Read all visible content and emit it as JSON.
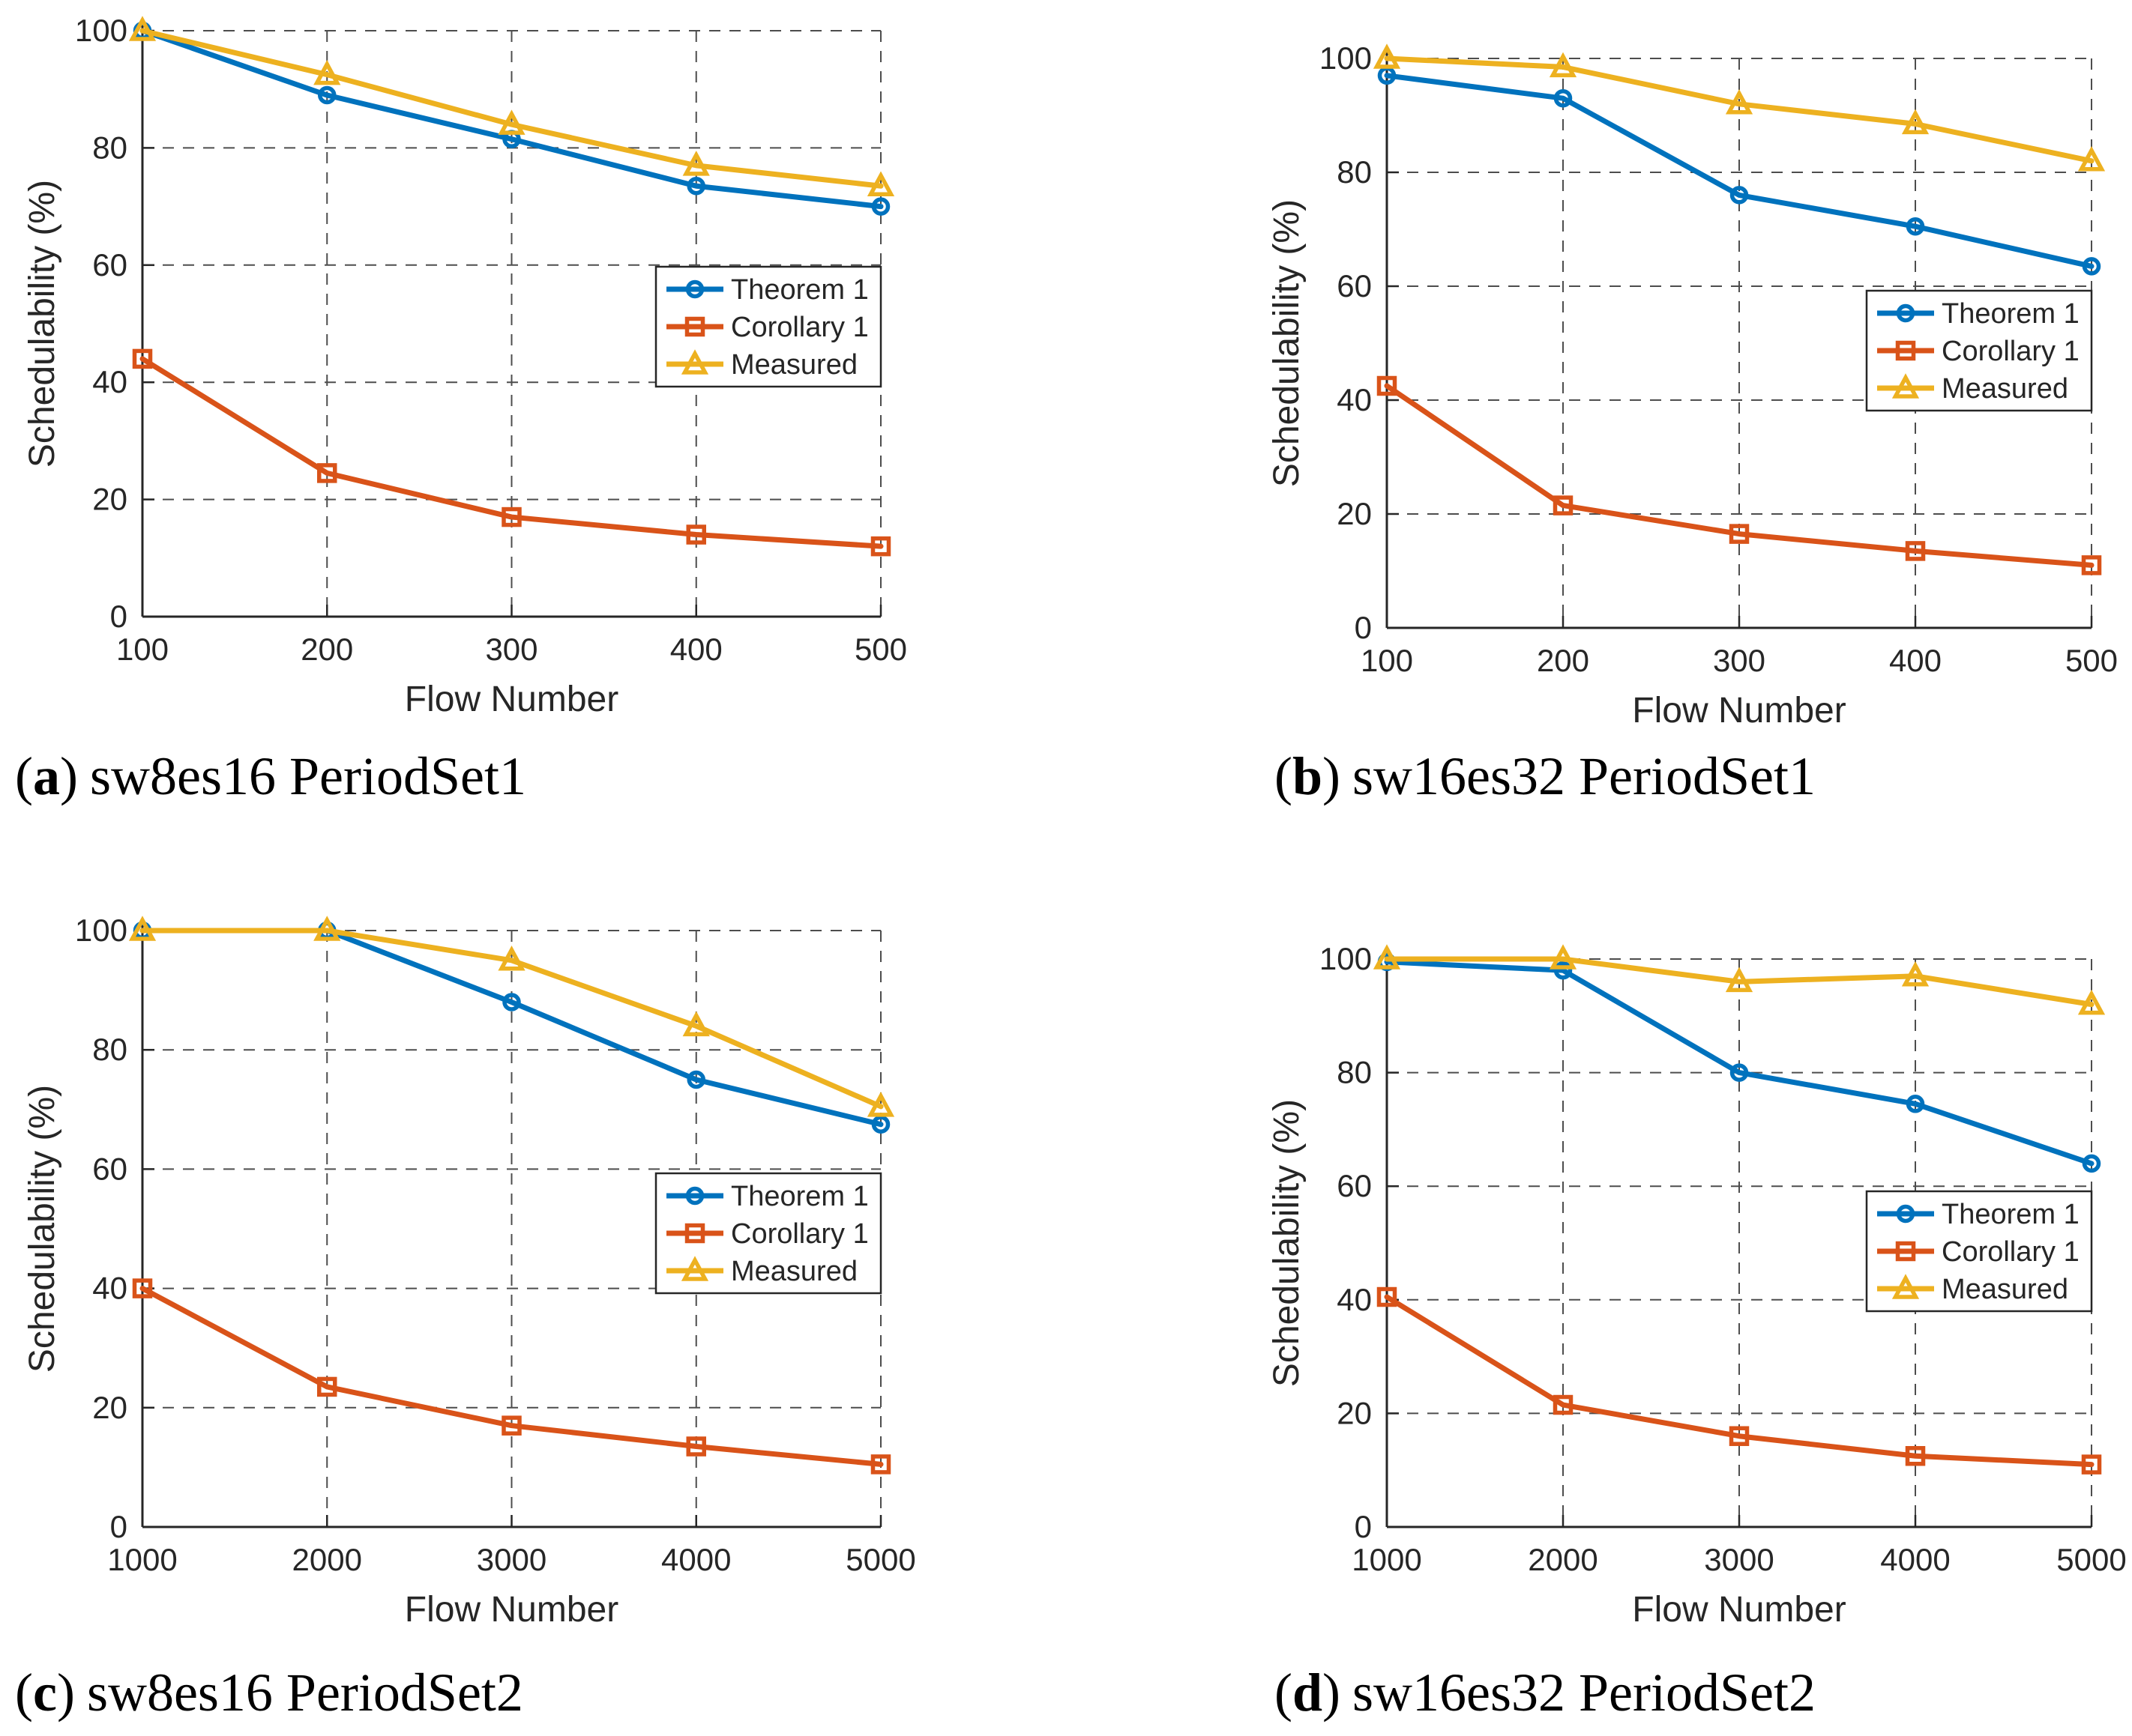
{
  "page": {
    "background": "#ffffff"
  },
  "colors": {
    "theorem1": "#0072BD",
    "corollary1": "#D95319",
    "measured": "#EDB120",
    "grid": "#4d4d4d",
    "axis": "#262626",
    "text": "#262626",
    "legend_background": "#ffffff"
  },
  "captions": {
    "paren_open": "(",
    "paren_close": ")"
  },
  "legend": {
    "position": "inside-right",
    "items": [
      "Theorem 1",
      "Corollary 1",
      "Measured"
    ]
  },
  "chart_data": [
    {
      "id": "a",
      "type": "line",
      "caption": {
        "letter": "a",
        "label": "sw8es16 PeriodSet1"
      },
      "xlabel": "Flow Number",
      "ylabel": "Schedulability (%)",
      "x": [
        100,
        200,
        300,
        400,
        500
      ],
      "xticks": [
        100,
        200,
        300,
        400,
        500
      ],
      "yticks": [
        0,
        20,
        40,
        60,
        80,
        100
      ],
      "xlim": [
        100,
        500
      ],
      "ylim": [
        0,
        100
      ],
      "grid": true,
      "legend_position": "inside-right",
      "series": [
        {
          "name": "Theorem 1",
          "key": "theorem1",
          "marker": "circle",
          "values": [
            100,
            89,
            81.5,
            73.5,
            70
          ]
        },
        {
          "name": "Corollary 1",
          "key": "corollary1",
          "marker": "square",
          "values": [
            44,
            24.5,
            17,
            14,
            12
          ]
        },
        {
          "name": "Measured",
          "key": "measured",
          "marker": "triangle",
          "values": [
            100,
            92.5,
            84,
            77,
            73.5
          ]
        }
      ]
    },
    {
      "id": "b",
      "type": "line",
      "caption": {
        "letter": "b",
        "label": "sw16es32 PeriodSet1"
      },
      "xlabel": "Flow Number",
      "ylabel": "Schedulability (%)",
      "x": [
        100,
        200,
        300,
        400,
        500
      ],
      "xticks": [
        100,
        200,
        300,
        400,
        500
      ],
      "yticks": [
        0,
        20,
        40,
        60,
        80,
        100
      ],
      "xlim": [
        100,
        500
      ],
      "ylim": [
        0,
        100
      ],
      "grid": true,
      "legend_position": "inside-right",
      "series": [
        {
          "name": "Theorem 1",
          "key": "theorem1",
          "marker": "circle",
          "values": [
            97,
            93,
            76,
            70.5,
            63.5
          ]
        },
        {
          "name": "Corollary 1",
          "key": "corollary1",
          "marker": "square",
          "values": [
            42.5,
            21.5,
            16.5,
            13.5,
            11
          ]
        },
        {
          "name": "Measured",
          "key": "measured",
          "marker": "triangle",
          "values": [
            100,
            98.5,
            92,
            88.5,
            82
          ]
        }
      ]
    },
    {
      "id": "c",
      "type": "line",
      "caption": {
        "letter": "c",
        "label": "sw8es16 PeriodSet2"
      },
      "xlabel": "Flow Number",
      "ylabel": "Schedulability (%)",
      "x": [
        1000,
        2000,
        3000,
        4000,
        5000
      ],
      "xticks": [
        1000,
        2000,
        3000,
        4000,
        5000
      ],
      "yticks": [
        0,
        20,
        40,
        60,
        80,
        100
      ],
      "xlim": [
        1000,
        5000
      ],
      "ylim": [
        0,
        100
      ],
      "grid": true,
      "legend_position": "inside-right",
      "series": [
        {
          "name": "Theorem 1",
          "key": "theorem1",
          "marker": "circle",
          "values": [
            100,
            100,
            88,
            75,
            67.5
          ]
        },
        {
          "name": "Corollary 1",
          "key": "corollary1",
          "marker": "square",
          "values": [
            40,
            23.5,
            17,
            13.5,
            10.5
          ]
        },
        {
          "name": "Measured",
          "key": "measured",
          "marker": "triangle",
          "values": [
            100,
            100,
            95,
            84,
            70.5
          ]
        }
      ]
    },
    {
      "id": "d",
      "type": "line",
      "caption": {
        "letter": "d",
        "label": "sw16es32 PeriodSet2"
      },
      "xlabel": "Flow Number",
      "ylabel": "Schedulability (%)",
      "x": [
        1000,
        2000,
        3000,
        4000,
        5000
      ],
      "xticks": [
        1000,
        2000,
        3000,
        4000,
        5000
      ],
      "yticks": [
        0,
        20,
        40,
        60,
        80,
        100
      ],
      "xlim": [
        1000,
        5000
      ],
      "ylim": [
        0,
        100
      ],
      "grid": true,
      "legend_position": "inside-right",
      "series": [
        {
          "name": "Theorem 1",
          "key": "theorem1",
          "marker": "circle",
          "values": [
            99.5,
            98,
            80,
            74.5,
            64
          ]
        },
        {
          "name": "Corollary 1",
          "key": "corollary1",
          "marker": "square",
          "values": [
            40.5,
            21.5,
            16,
            12.5,
            11
          ]
        },
        {
          "name": "Measured",
          "key": "measured",
          "marker": "triangle",
          "values": [
            100,
            100,
            96,
            97,
            92
          ]
        }
      ]
    }
  ]
}
